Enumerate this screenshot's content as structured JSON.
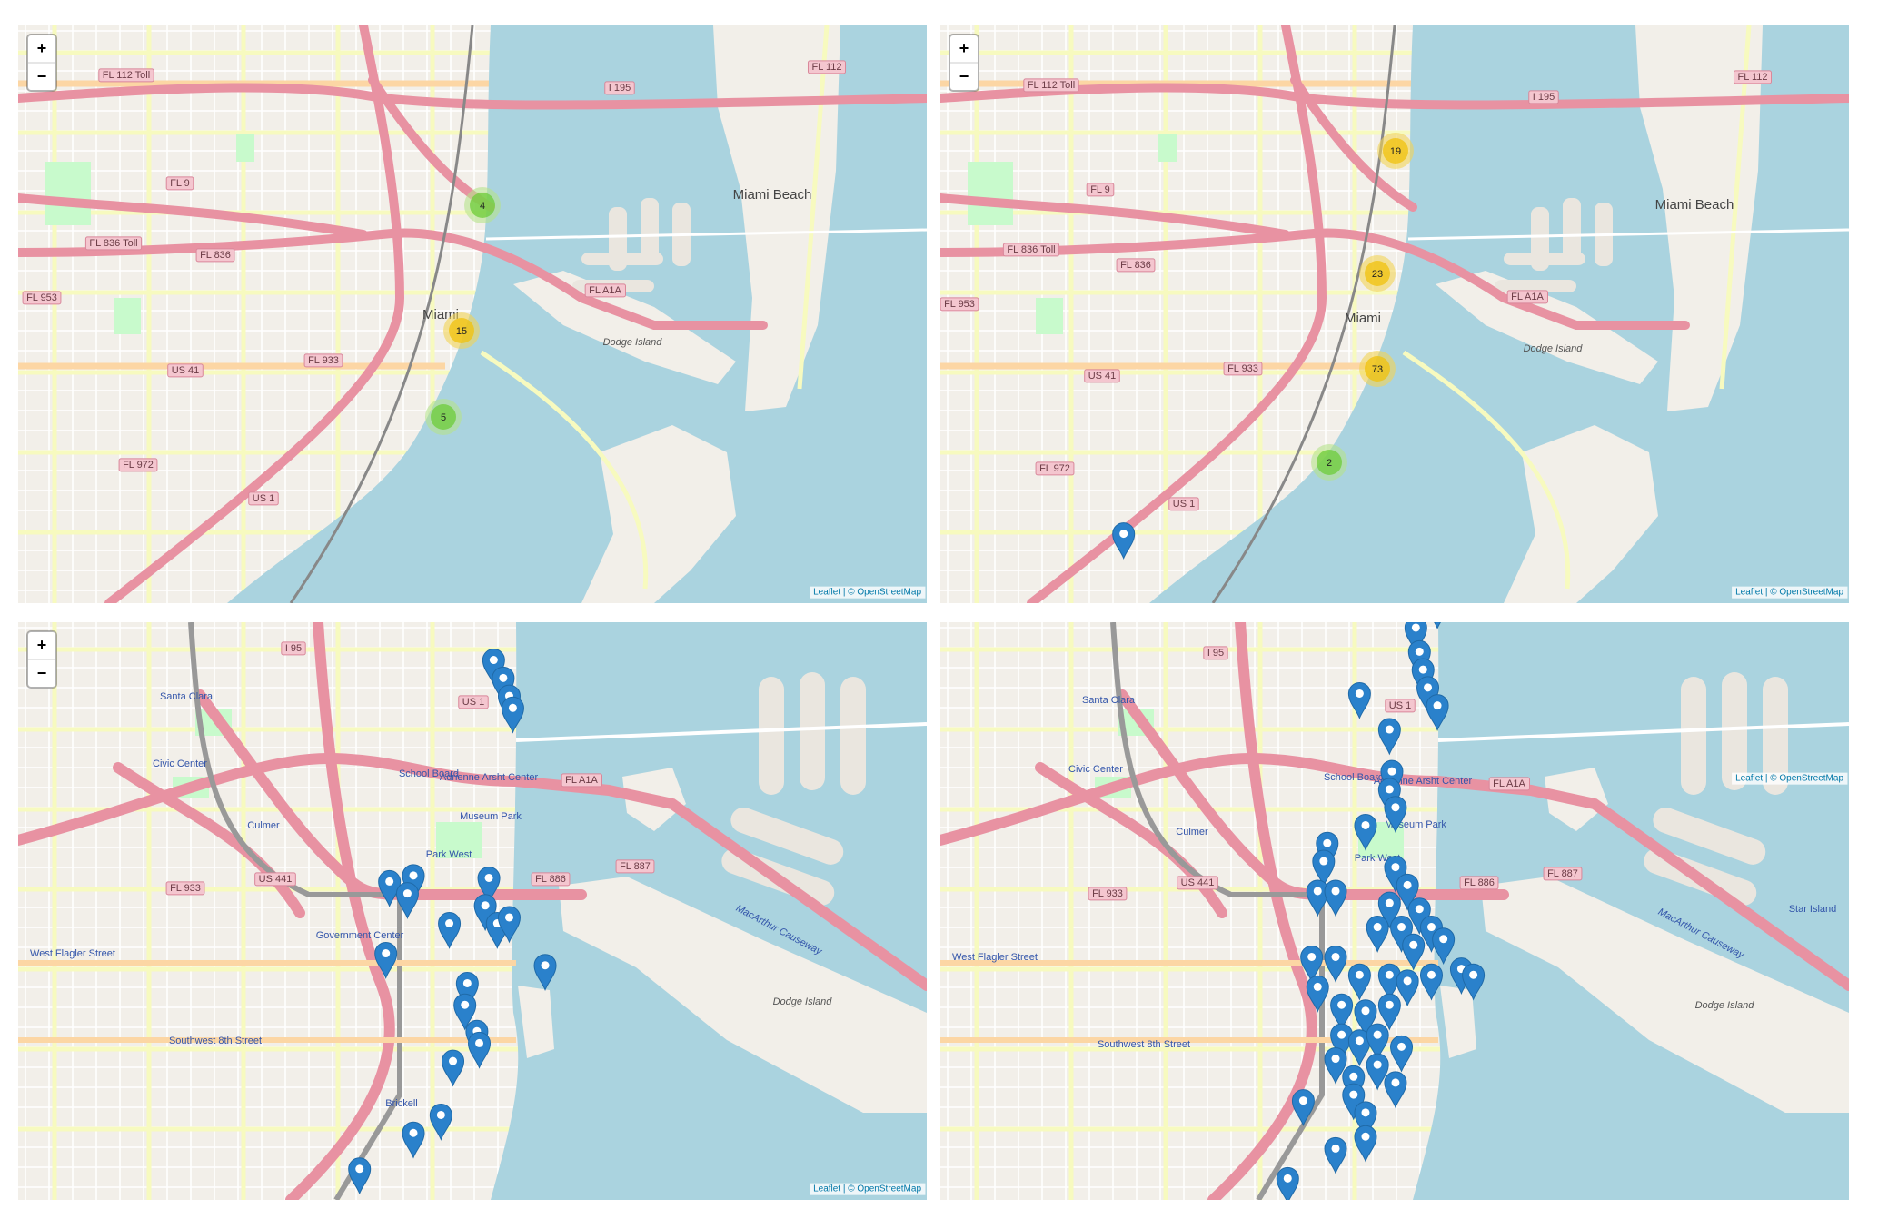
{
  "panels": [
    {
      "zoom": [
        "+",
        "−"
      ],
      "clusters": [
        4,
        15,
        5
      ],
      "labels": [
        "FL 112 Toll",
        "I 195",
        "FL 112",
        "Miami Beach",
        "Miami",
        "Dodge Island",
        "FL 9",
        "FL 836 Toll",
        "FL 836",
        "FL A1A",
        "FL 953",
        "US 41",
        "FL 933",
        "FL 972",
        "US 1"
      ],
      "attribution": "Leaflet | © OpenStreetMap"
    },
    {
      "zoom": [
        "+",
        "−"
      ],
      "clusters": [
        19,
        23,
        73,
        2
      ],
      "labels": [
        "FL 112 Toll",
        "I 195",
        "FL 112",
        "Miami Beach",
        "Miami",
        "Dodge Island",
        "FL 9",
        "FL 836 Toll",
        "FL 836",
        "FL A1A",
        "FL 953",
        "US 41",
        "FL 933",
        "FL 972",
        "US 1"
      ],
      "attribution": "Leaflet | © OpenStreetMap"
    },
    {
      "zoom": [
        "+",
        "−"
      ],
      "labels": [
        "I 95",
        "US 1",
        "Santa Clara",
        "Civic Center",
        "Culmer",
        "School Board",
        "Adrienne Arsht Center",
        "Museum Park",
        "Park West",
        "FL A1A",
        "US 441",
        "FL 933",
        "FL 886",
        "FL 887",
        "MacArthur Causeway",
        "Dodge Island",
        "Government Center",
        "Brickell",
        "Southwest 8th Street",
        "West Flagler Street"
      ],
      "attribution": "Leaflet | © OpenStreetMap"
    },
    {
      "labels": [
        "I 95",
        "US 1",
        "Santa Clara",
        "Civic Center",
        "Culmer",
        "School Board",
        "Adrienne Arsht Center",
        "Museum Park",
        "Park West",
        "FL A1A",
        "US 441",
        "FL 933",
        "FL 886",
        "FL 887",
        "MacArthur Causeway",
        "Dodge Island",
        "Star Island",
        "Southwest 8th Street",
        "West Flagler Street"
      ],
      "attribution": "Leaflet | © OpenStreetMap"
    }
  ]
}
